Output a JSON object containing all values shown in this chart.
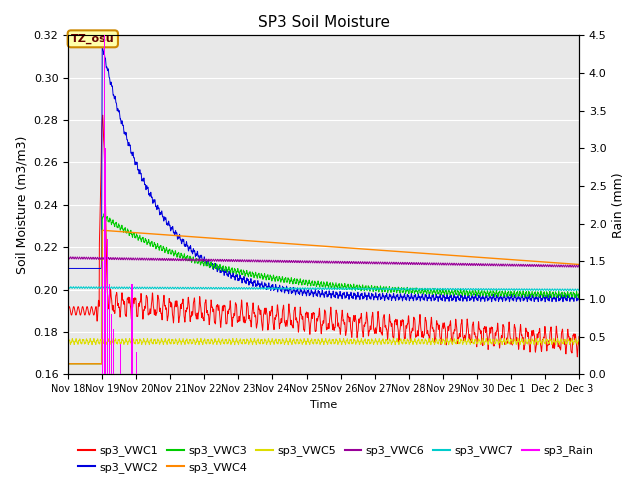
{
  "title": "SP3 Soil Moisture",
  "ylabel_left": "Soil Moisture (m3/m3)",
  "ylabel_right": "Rain (mm)",
  "xlabel": "Time",
  "ylim_left": [
    0.16,
    0.32
  ],
  "ylim_right": [
    0.0,
    4.5
  ],
  "annotation_text": "TZ_osu",
  "background_color": "#e8e8e8",
  "series_colors": {
    "sp3_VWC1": "#ff0000",
    "sp3_VWC2": "#0000dd",
    "sp3_VWC3": "#00cc00",
    "sp3_VWC4": "#ff8800",
    "sp3_VWC5": "#dddd00",
    "sp3_VWC6": "#990099",
    "sp3_VWC7": "#00cccc",
    "sp3_Rain": "#ff00ff"
  },
  "tick_labels": [
    "Nov 18",
    "Nov 19",
    "Nov 20",
    "Nov 21",
    "Nov 22",
    "Nov 23",
    "Nov 24",
    "Nov 25",
    "Nov 26",
    "Nov 27",
    "Nov 28",
    "Nov 29",
    "Nov 30",
    "Dec 1",
    "Dec 2",
    "Dec 3"
  ],
  "yticks_left": [
    0.16,
    0.18,
    0.2,
    0.22,
    0.24,
    0.26,
    0.28,
    0.3,
    0.32
  ],
  "yticks_right": [
    0.0,
    0.5,
    1.0,
    1.5,
    2.0,
    2.5,
    3.0,
    3.5,
    4.0,
    4.5
  ],
  "legend_entries": [
    "sp3_VWC1",
    "sp3_VWC2",
    "sp3_VWC3",
    "sp3_VWC4",
    "sp3_VWC5",
    "sp3_VWC6",
    "sp3_VWC7",
    "sp3_Rain"
  ]
}
